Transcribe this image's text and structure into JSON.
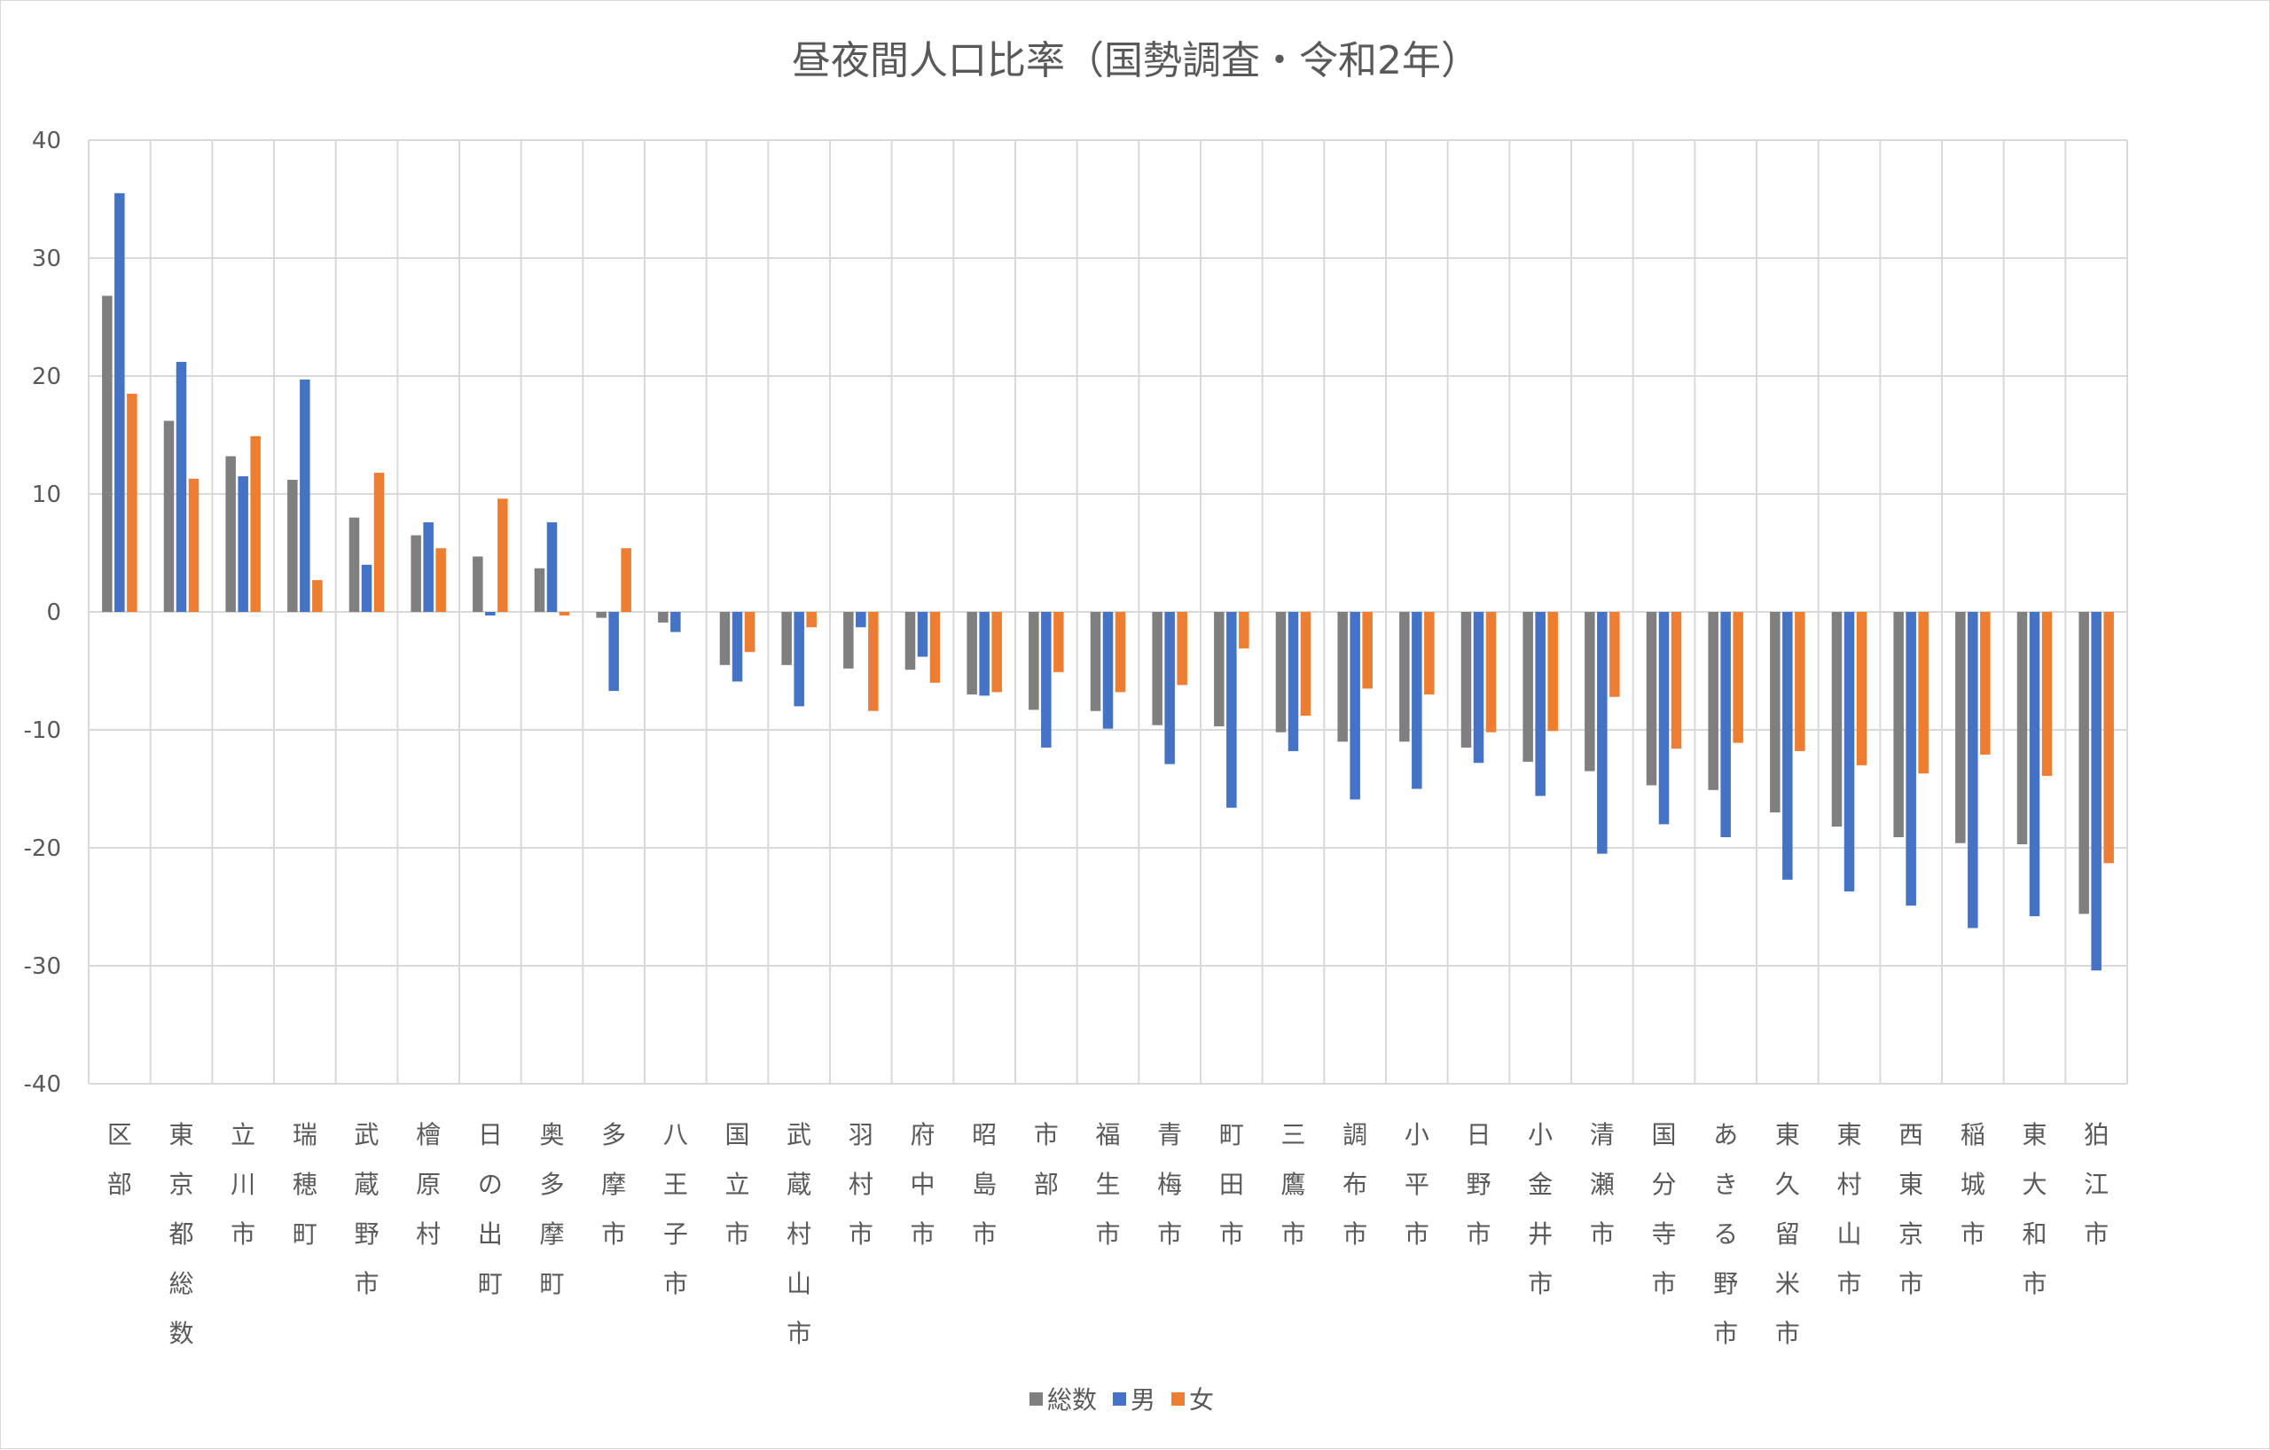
{
  "chart_data": {
    "type": "bar",
    "title": "昼夜間人口比率（国勢調査・令和2年）",
    "xlabel": "",
    "ylabel": "",
    "ylim": [
      -40,
      40
    ],
    "yticks": [
      40,
      30,
      20,
      10,
      0,
      -10,
      -20,
      -30,
      -40
    ],
    "grid": true,
    "legend_position": "bottom",
    "categories": [
      "区部",
      "東京都総数",
      "立川市",
      "瑞穂町",
      "武蔵野市",
      "檜原村",
      "日の出町",
      "奥多摩町",
      "多摩市",
      "八王子市",
      "国立市",
      "武蔵村山市",
      "羽村市",
      "府中市",
      "昭島市",
      "市部",
      "福生市",
      "青梅市",
      "町田市",
      "三鷹市",
      "調布市",
      "小平市",
      "日野市",
      "小金井市",
      "清瀬市",
      "国分寺市",
      "あきる野市",
      "東久留米市",
      "東村山市",
      "西東京市",
      "稲城市",
      "東大和市",
      "狛江市"
    ],
    "series": [
      {
        "name": "総数",
        "color": "#7f7f7f",
        "values": [
          26.8,
          16.2,
          13.2,
          11.2,
          8.0,
          6.5,
          4.7,
          3.7,
          -0.5,
          -0.9,
          -4.5,
          -4.5,
          -4.8,
          -4.9,
          -7.0,
          -8.3,
          -8.4,
          -9.6,
          -9.7,
          -10.2,
          -11.0,
          -11.0,
          -11.5,
          -12.7,
          -13.5,
          -14.7,
          -15.1,
          -17.0,
          -18.2,
          -19.1,
          -19.6,
          -19.7,
          -25.6
        ]
      },
      {
        "name": "男",
        "color": "#4472c4",
        "values": [
          35.5,
          21.2,
          11.5,
          19.7,
          4.0,
          7.6,
          -0.3,
          7.6,
          -6.7,
          -1.7,
          -5.9,
          -8.0,
          -1.3,
          -3.8,
          -7.1,
          -11.5,
          -9.9,
          -12.9,
          -16.6,
          -11.8,
          -15.9,
          -15.0,
          -12.8,
          -15.6,
          -20.5,
          -18.0,
          -19.1,
          -22.7,
          -23.7,
          -24.9,
          -26.8,
          -25.8,
          -30.4
        ]
      },
      {
        "name": "女",
        "color": "#ed7d31",
        "values": [
          18.5,
          11.3,
          14.9,
          2.7,
          11.8,
          5.4,
          9.6,
          -0.3,
          5.4,
          0.0,
          -3.4,
          -1.3,
          -8.4,
          -6.0,
          -6.8,
          -5.1,
          -6.8,
          -6.2,
          -3.1,
          -8.8,
          -6.5,
          -7.0,
          -10.2,
          -10.1,
          -7.2,
          -11.6,
          -11.1,
          -11.8,
          -13.0,
          -13.7,
          -12.1,
          -13.9,
          -21.3
        ]
      }
    ]
  }
}
